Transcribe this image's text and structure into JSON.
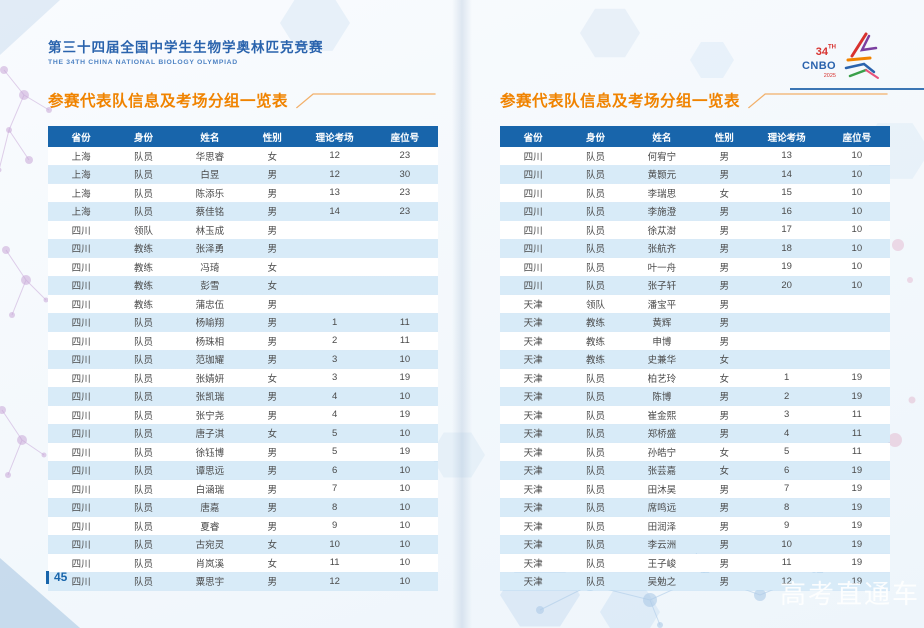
{
  "banner": {
    "title_cn": "第三十四届全国中学生生物学奥林匹克竞赛",
    "title_en": "THE 34TH CHINA NATIONAL BIOLOGY OLYMPIAD"
  },
  "logo": {
    "number": "34",
    "suffix": "TH",
    "acronym": "CNBO",
    "year": "2025"
  },
  "left_page": {
    "section_title": "参赛代表队信息及考场分组一览表",
    "page_number": "45",
    "table": {
      "headers": [
        "省份",
        "身份",
        "姓名",
        "性别",
        "理论考场",
        "座位号"
      ],
      "rows": [
        [
          "上海",
          "队员",
          "华思睿",
          "女",
          "12",
          "23"
        ],
        [
          "上海",
          "队员",
          "白昱",
          "男",
          "12",
          "30"
        ],
        [
          "上海",
          "队员",
          "陈添乐",
          "男",
          "13",
          "23"
        ],
        [
          "上海",
          "队员",
          "蔡佳铭",
          "男",
          "14",
          "23"
        ],
        [
          "四川",
          "领队",
          "林玉成",
          "男",
          "",
          ""
        ],
        [
          "四川",
          "教练",
          "张泽勇",
          "男",
          "",
          ""
        ],
        [
          "四川",
          "教练",
          "冯琦",
          "女",
          "",
          ""
        ],
        [
          "四川",
          "教练",
          "彭雪",
          "女",
          "",
          ""
        ],
        [
          "四川",
          "教练",
          "蒲忠伍",
          "男",
          "",
          ""
        ],
        [
          "四川",
          "队员",
          "杨喻翔",
          "男",
          "1",
          "11"
        ],
        [
          "四川",
          "队员",
          "杨珠相",
          "男",
          "2",
          "11"
        ],
        [
          "四川",
          "队员",
          "范珈耀",
          "男",
          "3",
          "10"
        ],
        [
          "四川",
          "队员",
          "张婧妍",
          "女",
          "3",
          "19"
        ],
        [
          "四川",
          "队员",
          "张凯瑞",
          "男",
          "4",
          "10"
        ],
        [
          "四川",
          "队员",
          "张宁尧",
          "男",
          "4",
          "19"
        ],
        [
          "四川",
          "队员",
          "唐子淇",
          "女",
          "5",
          "10"
        ],
        [
          "四川",
          "队员",
          "徐钰博",
          "男",
          "5",
          "19"
        ],
        [
          "四川",
          "队员",
          "谭思远",
          "男",
          "6",
          "10"
        ],
        [
          "四川",
          "队员",
          "白涵瑞",
          "男",
          "7",
          "10"
        ],
        [
          "四川",
          "队员",
          "唐嘉",
          "男",
          "8",
          "10"
        ],
        [
          "四川",
          "队员",
          "夏睿",
          "男",
          "9",
          "10"
        ],
        [
          "四川",
          "队员",
          "古宛灵",
          "女",
          "10",
          "10"
        ],
        [
          "四川",
          "队员",
          "肖岚溪",
          "女",
          "11",
          "10"
        ],
        [
          "四川",
          "队员",
          "粟思宇",
          "男",
          "12",
          "10"
        ]
      ]
    }
  },
  "right_page": {
    "section_title": "参赛代表队信息及考场分组一览表",
    "table": {
      "headers": [
        "省份",
        "身份",
        "姓名",
        "性别",
        "理论考场",
        "座位号"
      ],
      "rows": [
        [
          "四川",
          "队员",
          "何宥宁",
          "男",
          "13",
          "10"
        ],
        [
          "四川",
          "队员",
          "黄颢元",
          "男",
          "14",
          "10"
        ],
        [
          "四川",
          "队员",
          "李瑞思",
          "女",
          "15",
          "10"
        ],
        [
          "四川",
          "队员",
          "李施澄",
          "男",
          "16",
          "10"
        ],
        [
          "四川",
          "队员",
          "徐苁澍",
          "男",
          "17",
          "10"
        ],
        [
          "四川",
          "队员",
          "张航齐",
          "男",
          "18",
          "10"
        ],
        [
          "四川",
          "队员",
          "叶一舟",
          "男",
          "19",
          "10"
        ],
        [
          "四川",
          "队员",
          "张子轩",
          "男",
          "20",
          "10"
        ],
        [
          "天津",
          "领队",
          "潘宝平",
          "男",
          "",
          ""
        ],
        [
          "天津",
          "教练",
          "黄辉",
          "男",
          "",
          ""
        ],
        [
          "天津",
          "教练",
          "申博",
          "男",
          "",
          ""
        ],
        [
          "天津",
          "教练",
          "史兼华",
          "女",
          "",
          ""
        ],
        [
          "天津",
          "队员",
          "柏艺玲",
          "女",
          "1",
          "19"
        ],
        [
          "天津",
          "队员",
          "陈博",
          "男",
          "2",
          "19"
        ],
        [
          "天津",
          "队员",
          "崔金熙",
          "男",
          "3",
          "11"
        ],
        [
          "天津",
          "队员",
          "郑桥盛",
          "男",
          "4",
          "11"
        ],
        [
          "天津",
          "队员",
          "孙皓宁",
          "女",
          "5",
          "11"
        ],
        [
          "天津",
          "队员",
          "张芸嘉",
          "女",
          "6",
          "19"
        ],
        [
          "天津",
          "队员",
          "田沐昊",
          "男",
          "7",
          "19"
        ],
        [
          "天津",
          "队员",
          "席鸣远",
          "男",
          "8",
          "19"
        ],
        [
          "天津",
          "队员",
          "田润泽",
          "男",
          "9",
          "19"
        ],
        [
          "天津",
          "队员",
          "李云洲",
          "男",
          "10",
          "19"
        ],
        [
          "天津",
          "队员",
          "王子峻",
          "男",
          "11",
          "19"
        ],
        [
          "天津",
          "队员",
          "吴勉之",
          "男",
          "12",
          "19"
        ]
      ]
    }
  },
  "watermark": "高考直通车",
  "colors": {
    "accent_orange": "#f08300",
    "table_header_blue": "#1865ab",
    "row_alt_blue": "#d8ebf8",
    "banner_blue": "#2a63ad",
    "logo_red": "#d8322e"
  }
}
